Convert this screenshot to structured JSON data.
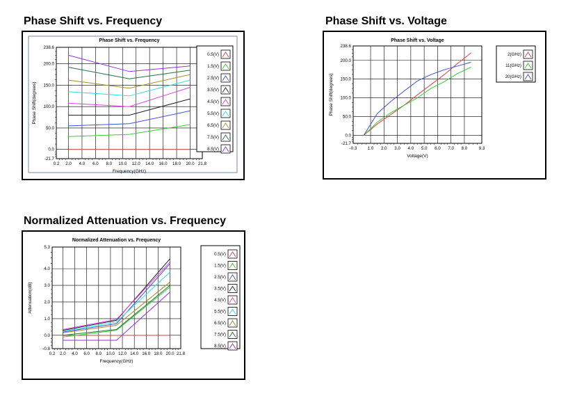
{
  "headings": {
    "phase_freq": "Phase Shift vs. Frequency",
    "phase_volt": "Phase Shift vs. Voltage",
    "atten_freq": "Normalized Attenuation vs. Frequency"
  },
  "chart_data": [
    {
      "type": "line",
      "title": "Phase Shift vs. Frequency",
      "xlabel": "Frequency(GHz)",
      "ylabel": "Phase Shift(degrees)",
      "xlim": [
        0.2,
        21.8
      ],
      "ylim": [
        -21.7,
        238.6
      ],
      "xticks": [
        "0.2",
        "2.0",
        "4.0",
        "6.0",
        "8.0",
        "10.0",
        "12.0",
        "14.0",
        "16.0",
        "18.0",
        "20.0",
        "21.8"
      ],
      "yticks": [
        "-21.7",
        "0.0",
        "50.0",
        "100.0",
        "150.0",
        "200.0",
        "238.6"
      ],
      "grid": true,
      "legend_position": "right",
      "x": [
        2,
        11,
        20
      ],
      "series": [
        {
          "name": "0.5(V)",
          "color": "#e04040",
          "values": [
            0,
            0,
            0
          ]
        },
        {
          "name": "1.5(V)",
          "color": "#30d030",
          "values": [
            30,
            35,
            58
          ]
        },
        {
          "name": "2.5(V)",
          "color": "#4050e0",
          "values": [
            55,
            60,
            90
          ]
        },
        {
          "name": "3.5(V)",
          "color": "#202020",
          "values": [
            80,
            80,
            118
          ]
        },
        {
          "name": "4.5(V)",
          "color": "#e040e0",
          "values": [
            108,
            100,
            145
          ]
        },
        {
          "name": "5.5(V)",
          "color": "#30e0e0",
          "values": [
            135,
            125,
            162
          ]
        },
        {
          "name": "6.5(V)",
          "color": "#a09020",
          "values": [
            162,
            143,
            175
          ]
        },
        {
          "name": "7.5(V)",
          "color": "#207040",
          "values": [
            192,
            165,
            185
          ]
        },
        {
          "name": "8.5(V)",
          "color": "#9030e0",
          "values": [
            220,
            182,
            195
          ]
        }
      ]
    },
    {
      "type": "line",
      "title": "Phase Shift vs. Voltage",
      "xlabel": "Voltage(V)",
      "ylabel": "Phase Shift(degrees)",
      "xlim": [
        -0.3,
        9.3
      ],
      "ylim": [
        -21.7,
        238.6
      ],
      "xticks": [
        "-0.3",
        "1.0",
        "2.0",
        "3.0",
        "4.0",
        "5.0",
        "6.0",
        "7.0",
        "8.0",
        "9.3"
      ],
      "yticks": [
        "-21.7",
        "0.0",
        "50.0",
        "100.0",
        "150.0",
        "200.0",
        "238.6"
      ],
      "grid": true,
      "legend_position": "right",
      "x": [
        0.5,
        1.5,
        2.5,
        3.5,
        4.5,
        5.5,
        6.5,
        7.5,
        8.5
      ],
      "series": [
        {
          "name": "2(GHz)",
          "color": "#e04040",
          "values": [
            0,
            30,
            55,
            80,
            108,
            135,
            162,
            192,
            220
          ]
        },
        {
          "name": "11(GHz)",
          "color": "#30d030",
          "values": [
            0,
            35,
            60,
            80,
            100,
            125,
            143,
            165,
            182
          ]
        },
        {
          "name": "20(GHz)",
          "color": "#4050e0",
          "values": [
            0,
            58,
            90,
            118,
            145,
            162,
            175,
            185,
            195
          ]
        }
      ]
    },
    {
      "type": "line",
      "title": "Normalized Attenuation vs. Frequency",
      "xlabel": "Frequency(GHz)",
      "ylabel": "Attenuation(dB)",
      "xlim": [
        0.2,
        21.8
      ],
      "ylim": [
        -0.8,
        5.3
      ],
      "xticks": [
        "0.2",
        "2.0",
        "4.0",
        "6.0",
        "8.0",
        "10.0",
        "12.0",
        "14.0",
        "16.0",
        "18.0",
        "20.0",
        "21.8"
      ],
      "yticks": [
        "-0.8",
        "0.0",
        "1.0",
        "2.0",
        "3.0",
        "4.0",
        "5.3"
      ],
      "grid": true,
      "legend_position": "right",
      "x": [
        2,
        11,
        20
      ],
      "series": [
        {
          "name": "0.5(V)",
          "color": "#e04040",
          "values": [
            0,
            0,
            0
          ]
        },
        {
          "name": "1.5(V)",
          "color": "#30d030",
          "values": [
            -0.1,
            0.3,
            2.9
          ]
        },
        {
          "name": "2.5(V)",
          "color": "#4050e0",
          "values": [
            0.2,
            0.7,
            4.3
          ]
        },
        {
          "name": "3.5(V)",
          "color": "#202020",
          "values": [
            0.3,
            0.9,
            4.6
          ]
        },
        {
          "name": "4.5(V)",
          "color": "#e040e0",
          "values": [
            0.35,
            0.95,
            4.4
          ]
        },
        {
          "name": "5.5(V)",
          "color": "#30e0e0",
          "values": [
            0.25,
            0.8,
            3.8
          ]
        },
        {
          "name": "6.5(V)",
          "color": "#a09020",
          "values": [
            0.15,
            0.6,
            3.2
          ]
        },
        {
          "name": "7.5(V)",
          "color": "#207040",
          "values": [
            0.0,
            0.35,
            3.0
          ]
        },
        {
          "name": "8.5(V)",
          "color": "#9030e0",
          "values": [
            -0.3,
            -0.3,
            2.6
          ]
        }
      ]
    }
  ]
}
